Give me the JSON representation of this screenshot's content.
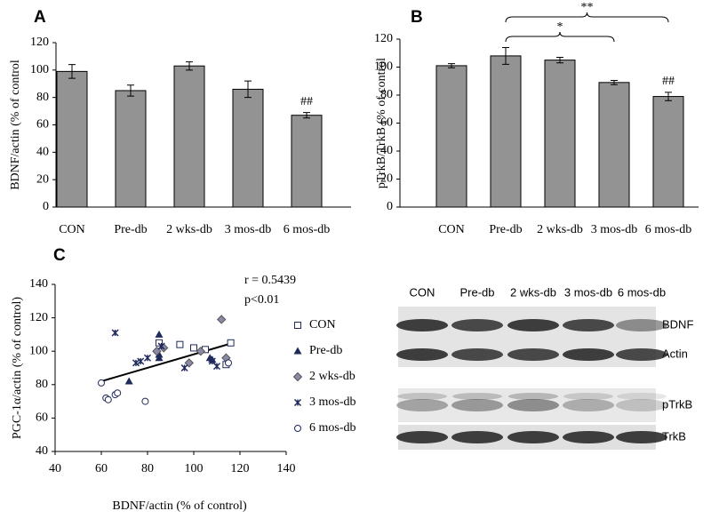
{
  "chart_data": [
    {
      "type": "bar",
      "panel": "A",
      "ylabel": "BDNF/actin (% of control",
      "categories": [
        "CON",
        "Pre-db",
        "2 wks-db",
        "3 mos-db",
        "6 mos-db"
      ],
      "values": [
        99,
        85,
        103,
        86,
        67
      ],
      "errors": [
        5,
        4,
        3,
        6,
        2
      ],
      "color": "#939393",
      "ylim": [
        0,
        120
      ],
      "yticks": [
        0,
        20,
        40,
        60,
        80,
        100,
        120
      ],
      "grid": false,
      "annotations": [
        {
          "category": "6 mos-db",
          "text": "##"
        }
      ]
    },
    {
      "type": "bar",
      "panel": "B",
      "ylabel": "pTrkB/TrkB (% of control",
      "categories": [
        "CON",
        "Pre-db",
        "2 wks-db",
        "3 mos-db",
        "6 mos-db"
      ],
      "values": [
        101,
        108,
        105,
        89,
        79
      ],
      "errors": [
        1.5,
        6,
        2,
        1.5,
        3
      ],
      "color": "#939393",
      "ylim": [
        0,
        120
      ],
      "yticks": [
        0,
        20,
        40,
        60,
        80,
        100,
        120
      ],
      "grid": false,
      "annotations": [
        {
          "category": "6 mos-db",
          "text": "##"
        }
      ],
      "brackets": [
        {
          "from": "Pre-db",
          "to": "3 mos-db",
          "text": "*"
        },
        {
          "from": "Pre-db",
          "to": "6 mos-db",
          "text": "**"
        }
      ]
    },
    {
      "type": "scatter",
      "panel": "C",
      "xlabel": "BDNF/actin (% of control)",
      "ylabel": "PGC-1α/actin (% of control)",
      "xlim": [
        40,
        140
      ],
      "xticks": [
        40,
        60,
        80,
        100,
        120,
        140
      ],
      "ylim": [
        40,
        140
      ],
      "yticks": [
        40,
        60,
        80,
        100,
        120,
        140
      ],
      "annotations": [
        "r = 0.5439",
        "p<0.01"
      ],
      "trendline": {
        "x": [
          60,
          117
        ],
        "y": [
          82,
          105
        ]
      },
      "series": [
        {
          "name": "CON",
          "marker": "square",
          "color": "#1f2a5a",
          "x": [
            85,
            94,
            100,
            105,
            114,
            116
          ],
          "y": [
            105,
            104,
            102,
            101,
            92,
            105
          ]
        },
        {
          "name": "Pre-db",
          "marker": "triangle",
          "color": "#1f2a5a",
          "x": [
            72,
            85,
            85,
            85,
            107,
            108
          ],
          "y": [
            82,
            110,
            96,
            98,
            96,
            95
          ]
        },
        {
          "name": "2 wks-db",
          "marker": "diamond",
          "color": "#8a8aa8",
          "x": [
            84,
            87,
            98,
            103,
            112,
            114
          ],
          "y": [
            100,
            102,
            93,
            100,
            119,
            96
          ]
        },
        {
          "name": "3 mos-db",
          "marker": "x",
          "color": "#1f2a5a",
          "x": [
            66,
            75,
            77,
            80,
            86,
            96,
            108,
            110
          ],
          "y": [
            111,
            93,
            94,
            96,
            103,
            90,
            94,
            91
          ]
        },
        {
          "name": "6 mos-db",
          "marker": "circle",
          "color": "#1f2a5a",
          "x": [
            60,
            62,
            63,
            66,
            67,
            79,
            115
          ],
          "y": [
            81,
            72,
            71,
            74,
            75,
            70,
            93
          ]
        }
      ]
    }
  ],
  "blot": {
    "columns": [
      "CON",
      "Pre-db",
      "2 wks-db",
      "3 mos-db",
      "6 mos-db"
    ],
    "rows": [
      "BDNF",
      "Actin",
      "pTrkB",
      "TrkB"
    ]
  }
}
